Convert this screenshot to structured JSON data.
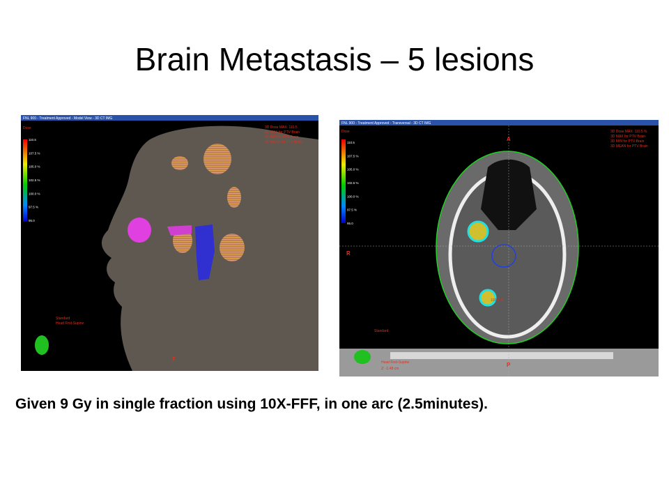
{
  "title": "Brain Metastasis – 5 lesions",
  "caption": "Given 9 Gy in single fraction using 10X-FFF, in one arc (2.5minutes).",
  "panels": [
    {
      "header": "FNL 900 - Treatment Approved - Model View - 3D CT IMG",
      "dose_label": "Dose",
      "scale": [
        "110.5",
        "107.5 %",
        "105.0 %",
        "102.5 %",
        "100.0 %",
        "97.5 %",
        "95.0"
      ],
      "stats": [
        "3D Dose MAX: 110.5",
        "3D MAX for PTV Brain",
        "3D MIN for PTV Brain",
        "3D MEAN for PTV Brain"
      ],
      "orientation": [
        "F"
      ],
      "notes": [
        "Standard",
        "Head First-Supine"
      ]
    },
    {
      "header": "FNL 900 - Treatment Approved - Transversal - 3D CT IMG",
      "dose_label": "Dose",
      "scale": [
        "110.5",
        "107.5 %",
        "105.0 %",
        "102.5 %",
        "100.0 %",
        "97.5 %",
        "95.0"
      ],
      "stats": [
        "3D Dose MAX: 110.5 %",
        "3D MAX for PTV Brain",
        "3D MIN for PTV Brain",
        "3D MEAN for PTV Brain"
      ],
      "orientation": [
        "A",
        "P",
        "R"
      ],
      "notes": [
        "Standard",
        "Head First-Supine",
        "Z: -1.48 cm"
      ],
      "point_label": "103.0 %"
    }
  ]
}
